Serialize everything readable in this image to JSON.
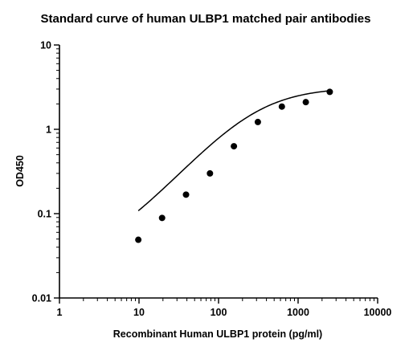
{
  "chart_data": {
    "type": "scatter",
    "title": "Standard curve of human ULBP1 matched pair antibodies",
    "xlabel": "Recombinant Human ULBP1 protein (pg/ml)",
    "ylabel": "OD450",
    "x_scale": "log",
    "y_scale": "log",
    "xlim": [
      1,
      10000
    ],
    "ylim": [
      0.01,
      10
    ],
    "x_ticks": [
      "1",
      "10",
      "100",
      "1000",
      "10000"
    ],
    "y_ticks": [
      "0.01",
      "0.1",
      "1",
      "10"
    ],
    "grid": false,
    "legend": "none",
    "series": [
      {
        "x": [
          9.8,
          19.5,
          39,
          78,
          156,
          312,
          625,
          1250,
          2500
        ],
        "y": [
          0.049,
          0.089,
          0.168,
          0.3,
          0.63,
          1.22,
          1.86,
          2.1,
          2.78
        ],
        "fit": "four-parameter logistic curve"
      }
    ],
    "colors": {
      "points": "#000000",
      "line": "#000000"
    }
  }
}
